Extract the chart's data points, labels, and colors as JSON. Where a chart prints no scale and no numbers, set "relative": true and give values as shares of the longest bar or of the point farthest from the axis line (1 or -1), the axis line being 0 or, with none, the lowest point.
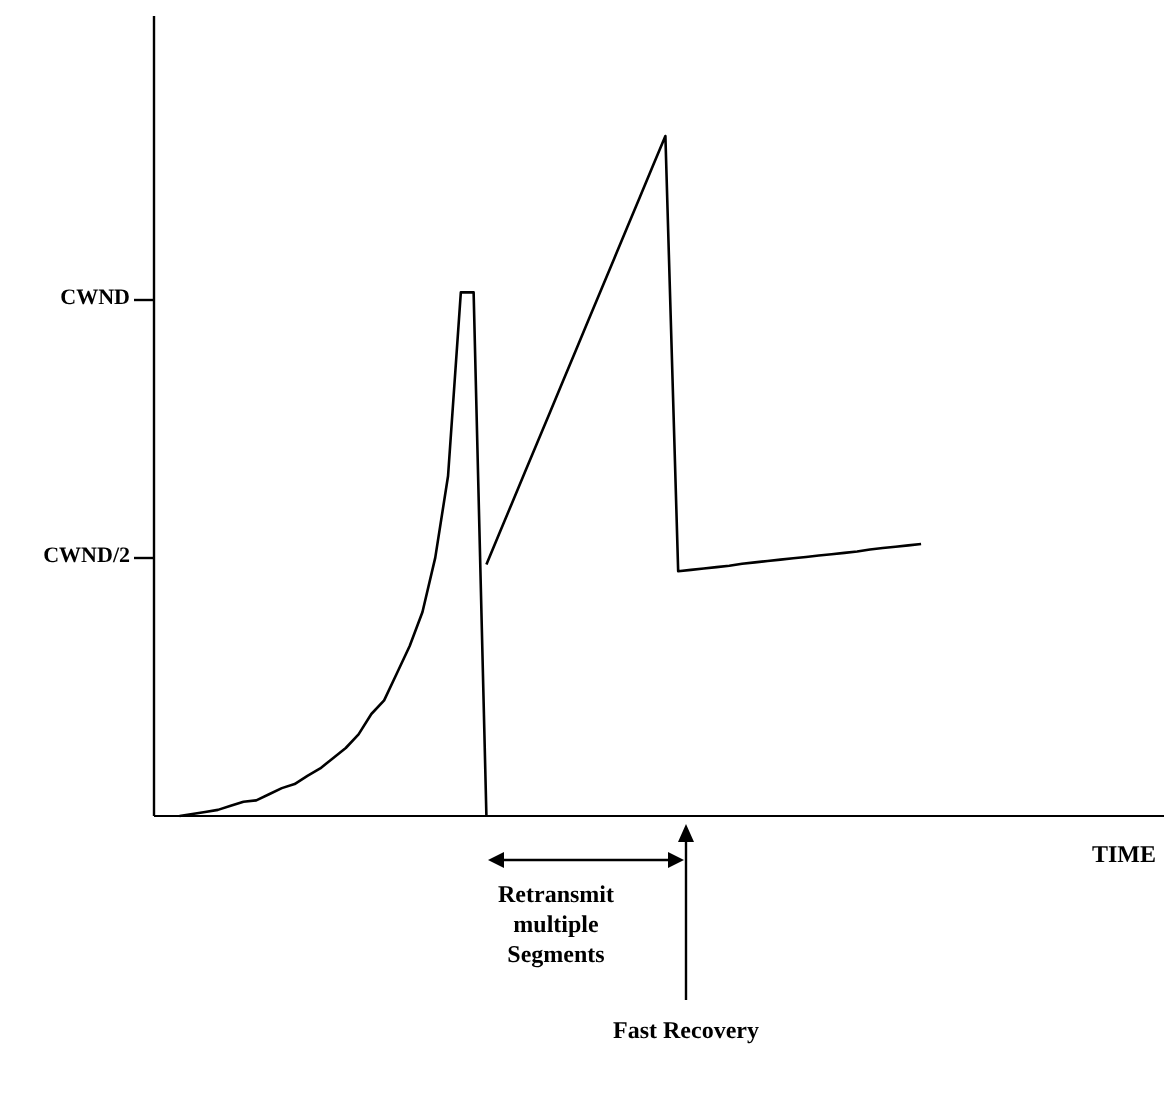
{
  "chart_data": {
    "type": "line",
    "xlabel": "TIME",
    "relative": true,
    "categories": [
      null,
      null,
      null,
      null,
      null,
      null,
      null,
      null,
      null,
      null,
      null,
      null,
      null,
      null,
      null,
      null,
      null,
      null,
      null,
      null,
      null,
      null,
      null,
      null,
      null,
      null,
      null,
      null,
      null,
      null,
      null,
      null,
      null,
      null,
      null,
      null,
      null,
      null,
      null,
      null,
      null,
      null,
      null,
      null,
      null,
      null,
      null,
      null,
      null,
      null,
      null,
      null,
      null,
      null,
      null,
      null,
      null,
      null,
      null,
      null,
      null,
      null,
      null,
      null,
      null,
      null,
      null,
      null,
      null,
      null,
      null,
      null,
      null,
      null,
      null,
      null,
      null,
      null,
      null,
      null
    ],
    "grid": false,
    "legend": false,
    "marker": "none",
    "line_style": "solid",
    "series": [
      {
        "color": "#000000",
        "values": [
          null,
          null,
          0,
          0.003,
          0.006,
          0.009,
          0.015,
          0.021,
          0.023,
          0.032,
          0.041,
          0.047,
          0.059,
          0.07,
          0.085,
          0.1,
          0.12,
          0.15,
          0.17,
          0.21,
          0.25,
          0.3,
          0.38,
          0.5,
          0.77,
          0.77,
          0,
          null,
          null,
          null,
          null,
          null,
          null,
          null,
          null,
          null,
          null,
          null,
          null,
          null,
          null,
          null,
          null,
          null,
          null,
          null,
          null,
          null,
          null,
          null,
          null,
          null,
          null,
          null,
          null,
          null,
          null,
          null,
          null,
          null,
          null,
          null,
          null,
          null,
          null,
          null,
          null,
          null,
          null,
          null,
          null,
          null,
          null,
          null,
          null,
          null,
          null,
          null,
          null,
          null
        ]
      },
      {
        "color": "#000000",
        "values": [
          null,
          null,
          null,
          null,
          null,
          null,
          null,
          null,
          null,
          null,
          null,
          null,
          null,
          null,
          null,
          null,
          null,
          null,
          null,
          null,
          null,
          null,
          null,
          null,
          null,
          null,
          0.37,
          0.415,
          0.46,
          0.505,
          0.55,
          0.595,
          0.64,
          0.685,
          0.73,
          0.775,
          0.82,
          0.865,
          0.91,
          0.955,
          1,
          0.36,
          0.362,
          0.364,
          0.366,
          0.368,
          0.371,
          0.373,
          0.375,
          0.377,
          0.379,
          0.381,
          0.383,
          0.385,
          0.387,
          0.389,
          0.392,
          0.394,
          0.396,
          0.398,
          0.4,
          null,
          null,
          null,
          null,
          null,
          null,
          null,
          null,
          null,
          null,
          null,
          null,
          null,
          null,
          null,
          null,
          null,
          null,
          null
        ]
      }
    ],
    "annotations": [
      "CWND",
      "CWND/2",
      "Retransmit multiple Segments",
      "Fast Recovery"
    ]
  }
}
